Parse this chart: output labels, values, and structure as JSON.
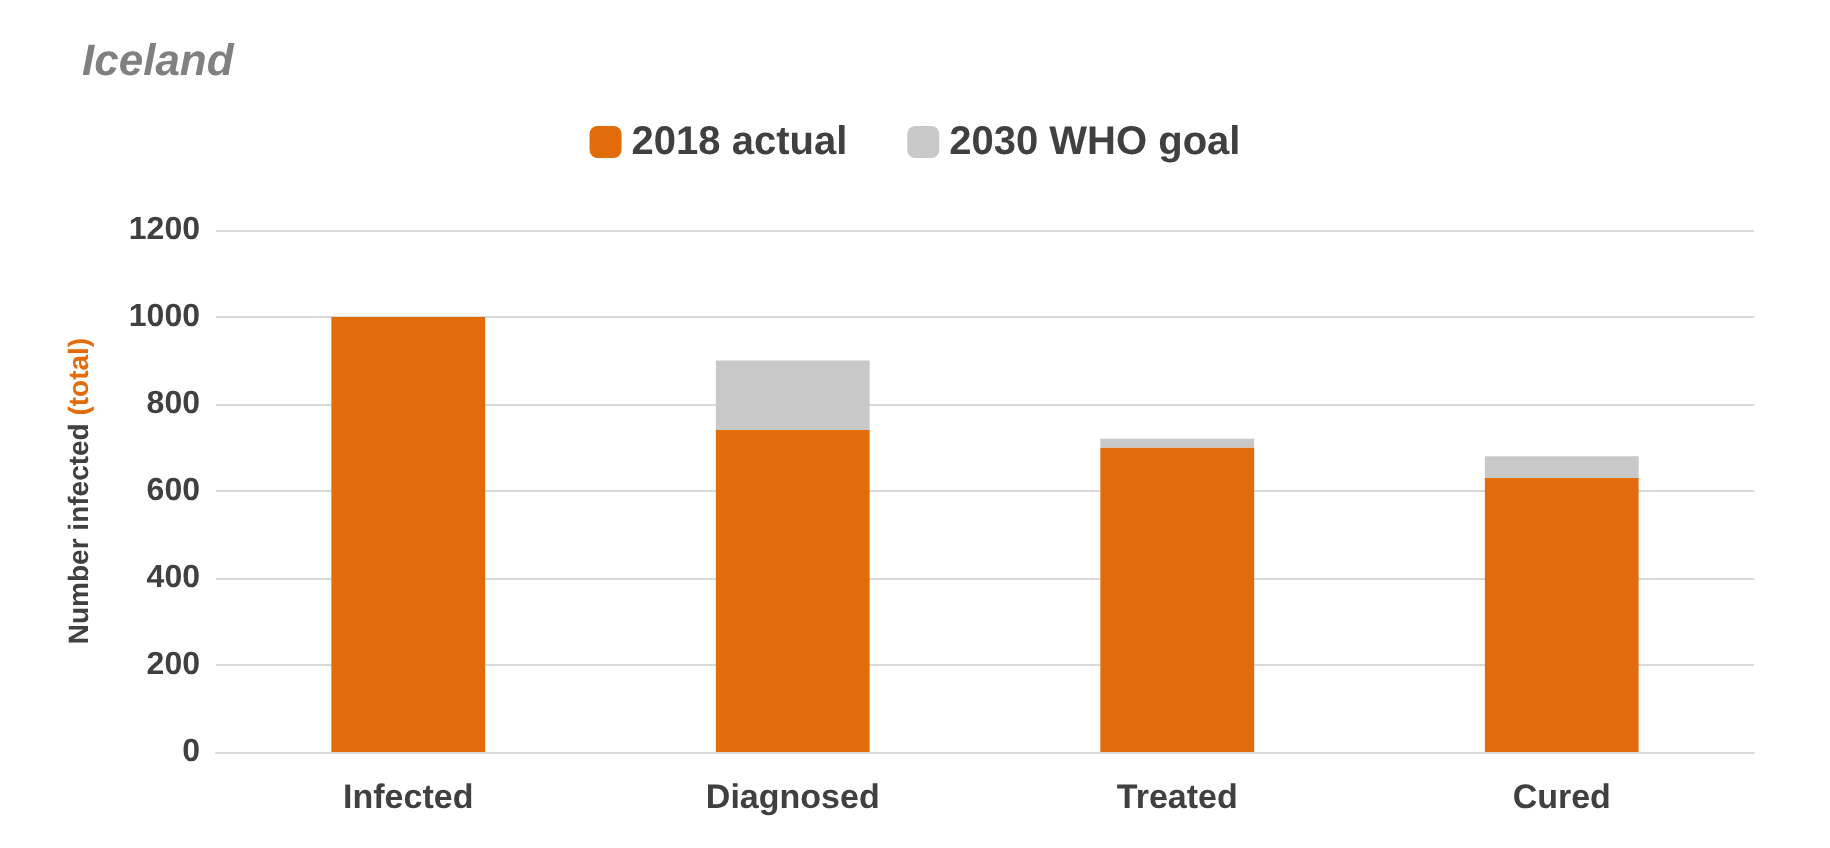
{
  "chart_data": {
    "type": "bar",
    "title": "Iceland",
    "ylabel": "Number infected (total)",
    "categories": [
      "Infected",
      "Diagnosed",
      "Treated",
      "Cured"
    ],
    "stacked": true,
    "series": [
      {
        "name": "2018 actual",
        "color": "#e36c0a",
        "values": [
          1000,
          740,
          700,
          630
        ]
      },
      {
        "name": "2030 WHO goal",
        "color": "#c8c8c8",
        "values": [
          null,
          160,
          20,
          50
        ]
      }
    ],
    "ylim": [
      0,
      1200
    ],
    "yticks": [
      0,
      200,
      400,
      600,
      800,
      1000,
      1200
    ],
    "grid": "y",
    "legend": "top"
  }
}
